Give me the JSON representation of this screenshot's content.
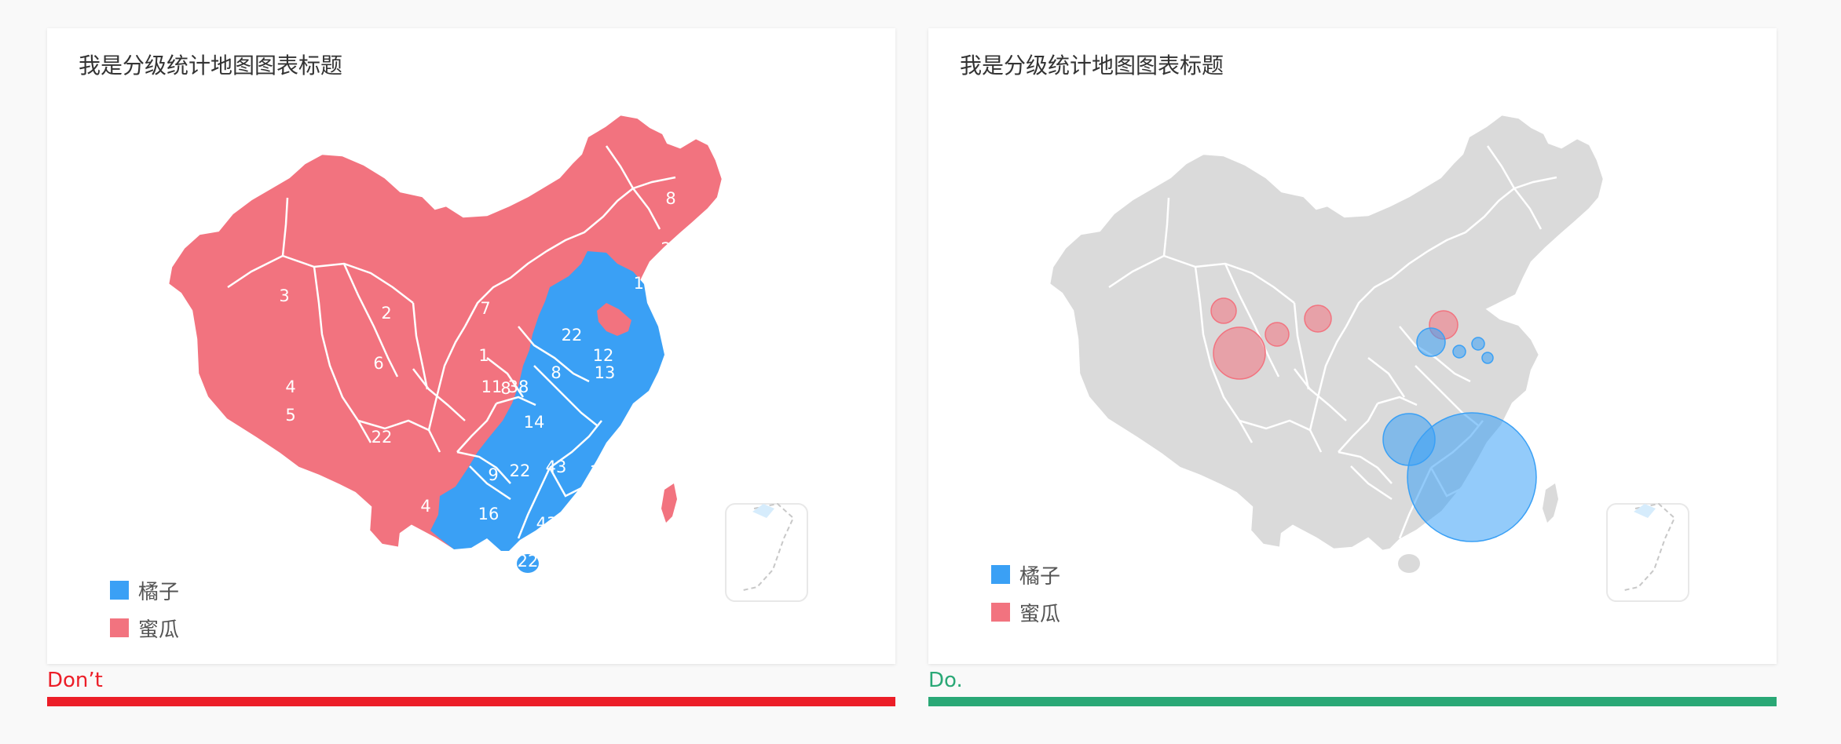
{
  "colors": {
    "orange": "#3aa0f5",
    "melon": "#f2737f",
    "base_gray": "#dadada",
    "dont_red": "#ec1e28",
    "do_green": "#2aa876"
  },
  "panels": [
    {
      "title": "我是分级统计地图图表标题",
      "legend": [
        {
          "label": "橘子",
          "color_key": "orange"
        },
        {
          "label": "蜜瓜",
          "color_key": "melon"
        }
      ],
      "caption": "Don’t"
    },
    {
      "title": "我是分级统计地图图表标题",
      "legend": [
        {
          "label": "橘子",
          "color_key": "orange"
        },
        {
          "label": "蜜瓜",
          "color_key": "melon"
        }
      ],
      "caption": "Do."
    }
  ],
  "chart_data": [
    {
      "type": "choropleth",
      "title": "我是分级统计地图图表标题",
      "legend": [
        "橘子",
        "蜜瓜"
      ],
      "region_labels": [
        {
          "value": "8",
          "series": "蜜瓜"
        },
        {
          "value": "2",
          "series": "蜜瓜"
        },
        {
          "value": "12",
          "series": "蜜瓜"
        },
        {
          "value": "3",
          "series": "蜜瓜"
        },
        {
          "value": "2",
          "series": "蜜瓜"
        },
        {
          "value": "7",
          "series": "蜜瓜"
        },
        {
          "value": "6",
          "series": "蜜瓜"
        },
        {
          "value": "1",
          "series": "蜜瓜"
        },
        {
          "value": "11",
          "series": "蜜瓜"
        },
        {
          "value": "8",
          "series": "蜜瓜"
        },
        {
          "value": "8",
          "series": "蜜瓜"
        },
        {
          "value": "5",
          "series": "蜜瓜"
        },
        {
          "value": "4",
          "series": "蜜瓜"
        },
        {
          "value": "9",
          "series": "蜜瓜"
        },
        {
          "value": "4",
          "series": "蜜瓜"
        },
        {
          "value": "22",
          "series": "橘子"
        },
        {
          "value": "22",
          "series": "橘子"
        },
        {
          "value": "12",
          "series": "橘子"
        },
        {
          "value": "38",
          "series": "橘子"
        },
        {
          "value": "13",
          "series": "橘子"
        },
        {
          "value": "14",
          "series": "橘子"
        },
        {
          "value": "43",
          "series": "橘子"
        },
        {
          "value": "38",
          "series": "橘子"
        },
        {
          "value": "22",
          "series": "橘子"
        },
        {
          "value": "16",
          "series": "橘子"
        },
        {
          "value": "12",
          "series": "橘子"
        },
        {
          "value": "16",
          "series": "橘子"
        },
        {
          "value": "43",
          "series": "橘子"
        },
        {
          "value": "22",
          "series": "橘子"
        }
      ]
    },
    {
      "type": "bubble-map",
      "title": "我是分级统计地图图表标题",
      "legend": [
        "橘子",
        "蜜瓜"
      ],
      "bubbles": [
        {
          "series": "蜜瓜",
          "size": 16
        },
        {
          "series": "蜜瓜",
          "size": 15
        },
        {
          "series": "蜜瓜",
          "size": 33
        },
        {
          "series": "蜜瓜",
          "size": 17
        },
        {
          "series": "蜜瓜",
          "size": 18
        },
        {
          "series": "橘子",
          "size": 18
        },
        {
          "series": "橘子",
          "size": 8
        },
        {
          "series": "橘子",
          "size": 8
        },
        {
          "series": "橘子",
          "size": 7
        },
        {
          "series": "橘子",
          "size": 33
        },
        {
          "series": "橘子",
          "size": 82
        }
      ]
    }
  ]
}
